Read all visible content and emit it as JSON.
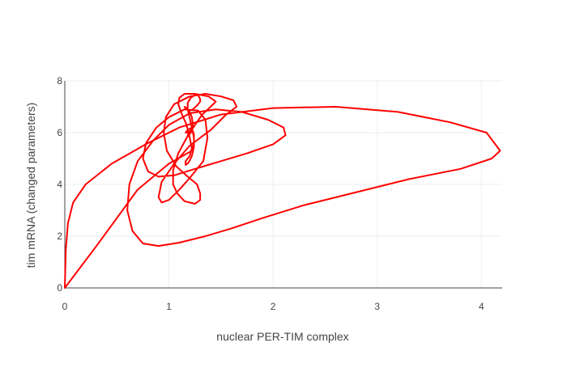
{
  "chart_data": {
    "type": "line",
    "title": "",
    "xlabel": "nuclear PER-TIM complex",
    "ylabel": "tim mRNA (changed parameters)",
    "xlim": [
      0,
      4.2
    ],
    "ylim": [
      0,
      8
    ],
    "x_ticks": [
      0,
      1,
      2,
      3,
      4
    ],
    "y_ticks": [
      0,
      2,
      4,
      6,
      8
    ],
    "grid": true,
    "legend": "none",
    "series": [
      {
        "color": "#ff0000",
        "x": [
          0,
          0.01,
          0.03,
          0.08,
          0.2,
          0.45,
          0.8,
          1.1,
          1.5,
          2.0,
          2.6,
          3.2,
          3.7,
          4.05,
          4.18,
          4.1,
          3.8,
          3.3,
          2.8,
          2.3,
          1.9,
          1.6,
          1.35,
          1.1,
          0.9,
          0.75,
          0.65,
          0.6,
          0.62,
          0.7,
          0.85,
          1.0,
          1.2,
          1.45,
          1.7,
          1.95,
          2.1,
          2.12,
          2.0,
          1.75,
          1.5,
          1.25,
          1.05,
          0.9,
          0.8,
          0.75,
          0.78,
          0.88,
          1.0,
          1.15,
          1.28,
          1.35,
          1.37,
          1.33,
          1.2,
          1.1,
          1.0,
          0.93,
          0.9,
          0.93,
          1.05,
          1.2,
          1.4,
          1.55,
          1.65,
          1.62,
          1.5,
          1.35,
          1.2,
          1.05,
          0.97,
          0.95,
          0.98,
          1.07,
          1.18,
          1.27,
          1.3,
          1.3,
          1.25,
          1.15,
          1.08,
          1.04,
          1.04,
          1.09,
          1.17,
          1.25,
          1.32,
          1.4,
          1.45,
          1.38,
          1.25,
          1.15,
          1.1,
          1.09,
          1.12,
          1.17,
          1.2,
          1.22,
          1.2,
          1.16,
          1.16,
          1.19,
          1.22,
          1.24,
          1.24,
          1.22,
          1.2,
          1.18,
          1.18,
          1.21,
          1.25,
          1.28,
          1.3,
          1.3,
          1.27,
          1.23,
          1.19,
          1.16,
          1.15,
          1.17,
          1.2,
          1.22,
          1.23,
          1.22,
          1.19,
          1.18,
          1.19,
          1.22,
          1.22,
          1.18,
          1.16,
          1.17,
          1.2,
          1.23,
          1.24,
          1.24,
          1.22,
          1.0,
          0.7,
          0.3,
          0.0
        ],
        "y": [
          0,
          1.5,
          2.5,
          3.3,
          4.0,
          4.8,
          5.6,
          6.2,
          6.7,
          6.95,
          7.0,
          6.8,
          6.4,
          6.0,
          5.3,
          5.0,
          4.6,
          4.2,
          3.7,
          3.2,
          2.7,
          2.3,
          2.0,
          1.75,
          1.62,
          1.72,
          2.2,
          3.0,
          4.0,
          4.9,
          5.7,
          6.3,
          6.75,
          6.9,
          6.8,
          6.5,
          6.2,
          5.9,
          5.55,
          5.2,
          4.9,
          4.6,
          4.35,
          4.3,
          4.5,
          5.0,
          5.6,
          6.2,
          6.6,
          6.9,
          6.85,
          6.5,
          5.8,
          4.9,
          4.25,
          3.8,
          3.4,
          3.3,
          3.5,
          4.1,
          4.8,
          5.5,
          6.1,
          6.7,
          7.0,
          7.25,
          7.4,
          7.5,
          7.4,
          7.1,
          6.6,
          6.0,
          5.3,
          4.7,
          4.3,
          4.0,
          3.65,
          3.4,
          3.25,
          3.35,
          3.65,
          4.0,
          4.55,
          5.2,
          5.8,
          6.3,
          6.7,
          7.0,
          7.2,
          7.4,
          7.5,
          7.5,
          7.35,
          7.1,
          6.75,
          6.3,
          5.8,
          5.4,
          5.1,
          4.9,
          4.75,
          4.85,
          5.1,
          5.45,
          5.8,
          6.2,
          6.55,
          6.9,
          7.15,
          7.35,
          7.45,
          7.45,
          7.3,
          7.2,
          7.05,
          6.9,
          6.85,
          6.95,
          7.0,
          6.95,
          6.8,
          6.6,
          6.3,
          6.05,
          5.9,
          5.9,
          6.0,
          6.15,
          6.2,
          6.1,
          6.0,
          6.0,
          6.05,
          6.05,
          5.95,
          5.6,
          5.3,
          4.8,
          3.8,
          1.6,
          0.0
        ]
      }
    ]
  }
}
